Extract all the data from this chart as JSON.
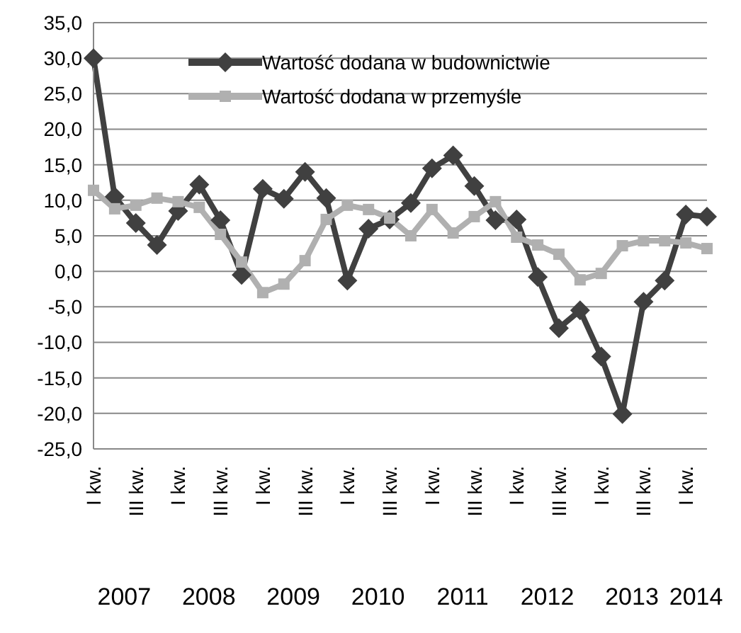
{
  "chart_data": {
    "type": "line",
    "categories": [
      "I kw.",
      null,
      "III kw.",
      null,
      "I kw.",
      null,
      "III kw.",
      null,
      "I kw.",
      null,
      "III kw.",
      null,
      "I kw.",
      null,
      "III kw.",
      null,
      "I kw.",
      null,
      "III kw.",
      null,
      "I kw.",
      null,
      "III kw.",
      null,
      "I kw.",
      null,
      "III kw.",
      null,
      "I kw.",
      null
    ],
    "annotations": [
      "2007",
      "2008",
      "2009",
      "2010",
      "2011",
      "2012",
      "2013",
      "2014"
    ],
    "series": [
      {
        "name": "Wartość dodana w budownictwie",
        "color": "#404040",
        "marker": "diamond",
        "values": [
          30.0,
          10.5,
          6.8,
          3.7,
          8.5,
          12.2,
          7.2,
          -0.5,
          11.6,
          10.2,
          14.0,
          10.3,
          -1.3,
          6.0,
          7.3,
          9.6,
          14.5,
          16.3,
          12.0,
          7.2,
          7.3,
          -0.8,
          -8.0,
          -5.5,
          -12.0,
          -20.1,
          -4.3,
          -1.3,
          8.0,
          7.7
        ]
      },
      {
        "name": "Wartość dodana w przemyśle",
        "color": "#b0b0b0",
        "marker": "square",
        "values": [
          11.4,
          8.8,
          9.3,
          10.3,
          9.8,
          9.0,
          5.2,
          1.3,
          -3.0,
          -1.8,
          1.5,
          7.3,
          9.3,
          8.7,
          7.5,
          5.0,
          8.7,
          5.4,
          7.7,
          9.8,
          4.8,
          3.7,
          2.4,
          -1.2,
          -0.3,
          3.6,
          4.3,
          4.3,
          4.0,
          3.2
        ]
      }
    ],
    "ylim": [
      -25,
      35
    ],
    "yticks": [
      {
        "value": -25,
        "label": "-25,0"
      },
      {
        "value": -20,
        "label": "-20,0"
      },
      {
        "value": -15,
        "label": "-15,0"
      },
      {
        "value": -10,
        "label": "-10,0"
      },
      {
        "value": -5,
        "label": "-5,0"
      },
      {
        "value": 0,
        "label": "0,0"
      },
      {
        "value": 5,
        "label": "5,0"
      },
      {
        "value": 10,
        "label": "10,0"
      },
      {
        "value": 15,
        "label": "15,0"
      },
      {
        "value": 20,
        "label": "20,0"
      },
      {
        "value": 25,
        "label": "25,0"
      },
      {
        "value": 30,
        "label": "30,0"
      },
      {
        "value": 35,
        "label": "35,0"
      }
    ],
    "grid": "y",
    "legend": "top",
    "line_style": "solid"
  }
}
